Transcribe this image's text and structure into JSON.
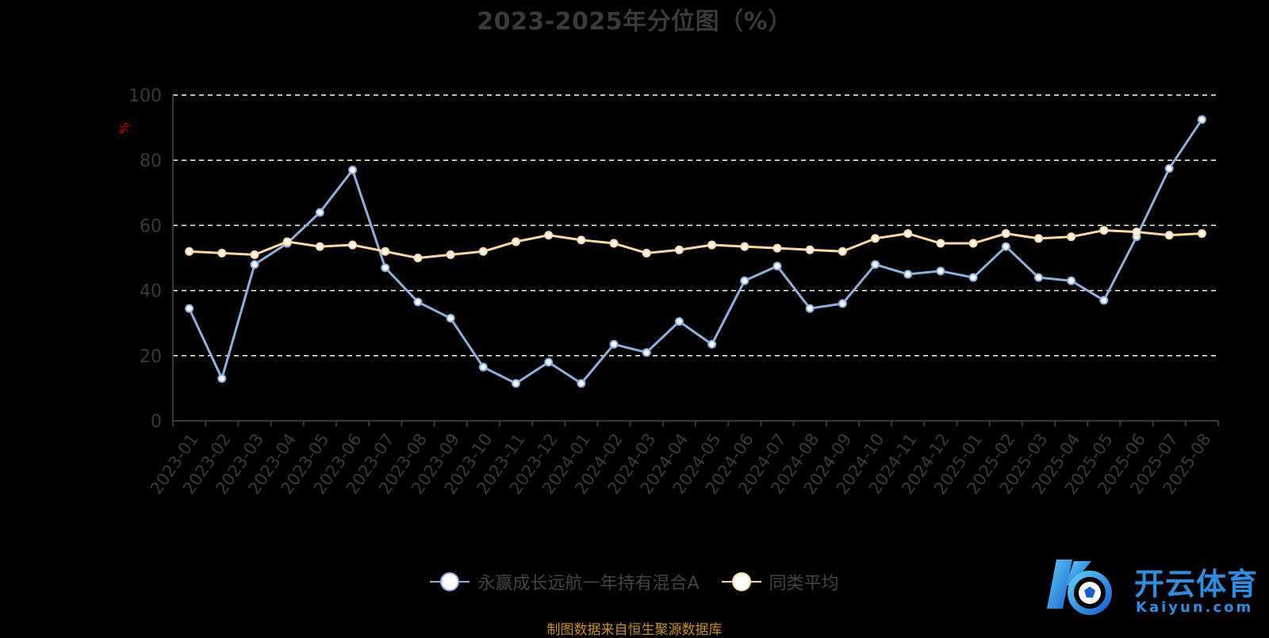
{
  "chart_data": {
    "type": "line",
    "title": "2023-2025年分位图（%）",
    "ylabel": "%",
    "ylim": [
      0,
      100
    ],
    "yticks": [
      "0",
      "20",
      "40",
      "60",
      "80",
      "100"
    ],
    "grid": "horizontal dashed",
    "legend_position": "bottom",
    "categories": [
      "2023-01",
      "2023-02",
      "2023-03",
      "2023-04",
      "2023-05",
      "2023-06",
      "2023-07",
      "2023-08",
      "2023-09",
      "2023-10",
      "2023-11",
      "2023-12",
      "2024-01",
      "2024-02",
      "2024-03",
      "2024-04",
      "2024-05",
      "2024-06",
      "2024-07",
      "2024-08",
      "2024-09",
      "2024-10",
      "2024-11",
      "2024-12",
      "2025-01",
      "2025-02",
      "2025-03",
      "2025-04",
      "2025-05",
      "2025-06",
      "2025-07",
      "2025-08"
    ],
    "series": [
      {
        "name": "永赢成长远航一年持有混合A",
        "color": "#8fb0de",
        "values": [
          34.5,
          13,
          48,
          54.5,
          64,
          77,
          47,
          36.5,
          31.5,
          16.5,
          11.5,
          18,
          11.5,
          23.5,
          21,
          30.5,
          23.5,
          43,
          47.5,
          34.5,
          36,
          48,
          45,
          46,
          44,
          53.5,
          44,
          43,
          37,
          56.5,
          77.5,
          92.5
        ]
      },
      {
        "name": "同类平均",
        "color": "#fbd9a0",
        "values": [
          52,
          51.5,
          51,
          55,
          53.5,
          54,
          52,
          50,
          51,
          52,
          55,
          57,
          55.5,
          54.5,
          51.5,
          52.5,
          54,
          53.5,
          53,
          52.5,
          52,
          56,
          57.5,
          54.5,
          54.5,
          57.5,
          56,
          56.5,
          58.5,
          58,
          57,
          57.5
        ]
      }
    ]
  },
  "source": "制图数据来自恒生聚源数据库",
  "watermark": {
    "brand": "开云体育",
    "url": "Kaiyun.com"
  },
  "colors": {
    "axis": "#3a3a3a",
    "tick_label": "#3a3a3a",
    "grid": "#ffffff",
    "ylabel": "#cc0000",
    "source": "#c8911f",
    "watermark": "#2d8ee0"
  }
}
